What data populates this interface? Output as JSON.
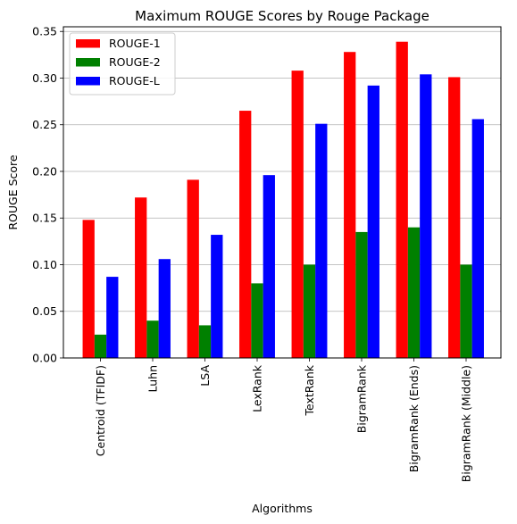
{
  "chart_data": {
    "type": "bar",
    "title": "Maximum ROUGE Scores by Rouge Package",
    "xlabel": "Algorithms",
    "ylabel": "ROUGE Score",
    "ylim": [
      0,
      0.355
    ],
    "yticks": [
      "0.00",
      "0.05",
      "0.10",
      "0.15",
      "0.20",
      "0.25",
      "0.30",
      "0.35"
    ],
    "grid": "horizontal",
    "legend_position": "top-left",
    "categories": [
      "Centroid (TFIDF)",
      "Luhn",
      "LSA",
      "LexRank",
      "TextRank",
      "BigramRank",
      "BigramRank (Ends)",
      "BigramRank (Middle)"
    ],
    "series": [
      {
        "name": "ROUGE-1",
        "color": "#ff0000",
        "values": [
          0.148,
          0.172,
          0.191,
          0.265,
          0.308,
          0.328,
          0.339,
          0.301
        ]
      },
      {
        "name": "ROUGE-2",
        "color": "#008000",
        "values": [
          0.025,
          0.04,
          0.035,
          0.08,
          0.1,
          0.135,
          0.14,
          0.1
        ]
      },
      {
        "name": "ROUGE-L",
        "color": "#0000ff",
        "values": [
          0.087,
          0.106,
          0.132,
          0.196,
          0.251,
          0.292,
          0.304,
          0.256
        ]
      }
    ]
  }
}
